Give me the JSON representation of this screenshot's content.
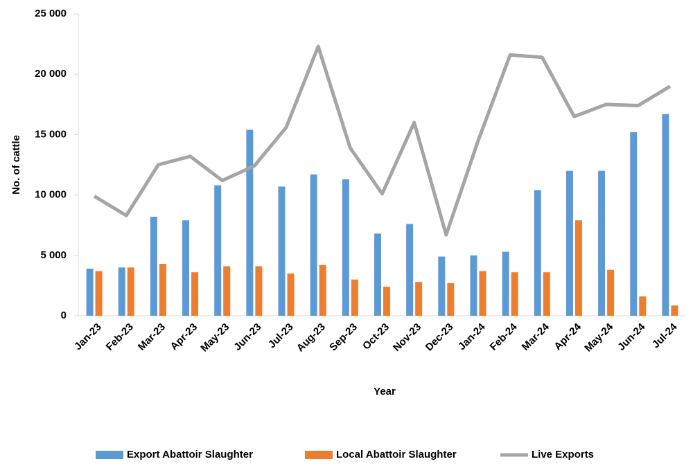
{
  "chart_data": {
    "type": "bar-line",
    "x_label": "Year",
    "y_label": "No. of cattle",
    "categories": [
      "Jan-23",
      "Feb-23",
      "Mar-23",
      "Apr-23",
      "May-23",
      "Jun-23",
      "Jul-23",
      "Aug-23",
      "Sep-23",
      "Oct-23",
      "Nov-23",
      "Dec-23",
      "Jan-24",
      "Feb-24",
      "Mar-24",
      "Apr-24",
      "May-24",
      "Jun-24",
      "Jul-24"
    ],
    "series": [
      {
        "name": "Export Abattoir Slaughter",
        "type": "bar",
        "color": "#5b9bd5",
        "values": [
          3900,
          4000,
          8200,
          7900,
          10800,
          15400,
          10700,
          11700,
          11300,
          6800,
          7600,
          4900,
          5000,
          5300,
          10400,
          12000,
          12000,
          15200,
          16700
        ]
      },
      {
        "name": "Local Abattoir Slaughter",
        "type": "bar",
        "color": "#ed7d31",
        "values": [
          3700,
          4000,
          4300,
          3600,
          4100,
          4100,
          3500,
          4200,
          3000,
          2400,
          2800,
          2700,
          3700,
          3600,
          3600,
          7900,
          3800,
          1600,
          850
        ]
      },
      {
        "name": "Live Exports",
        "type": "line",
        "color": "#a5a5a5",
        "values": [
          9900,
          8300,
          12500,
          13200,
          11200,
          12400,
          15600,
          22300,
          13900,
          10100,
          16000,
          6700,
          14500,
          21600,
          21400,
          16500,
          17500,
          17400,
          19000
        ]
      }
    ],
    "ylim": [
      0,
      25000
    ],
    "yticks": [
      0,
      {
        "value": 5000,
        "label": "5 000"
      },
      {
        "value": 10000,
        "label": "10 000"
      },
      {
        "value": 15000,
        "label": "15 000"
      },
      {
        "value": 20000,
        "label": "20 000"
      },
      {
        "value": 25000,
        "label": "25 000"
      }
    ],
    "grid": false,
    "legend": "bottom"
  }
}
